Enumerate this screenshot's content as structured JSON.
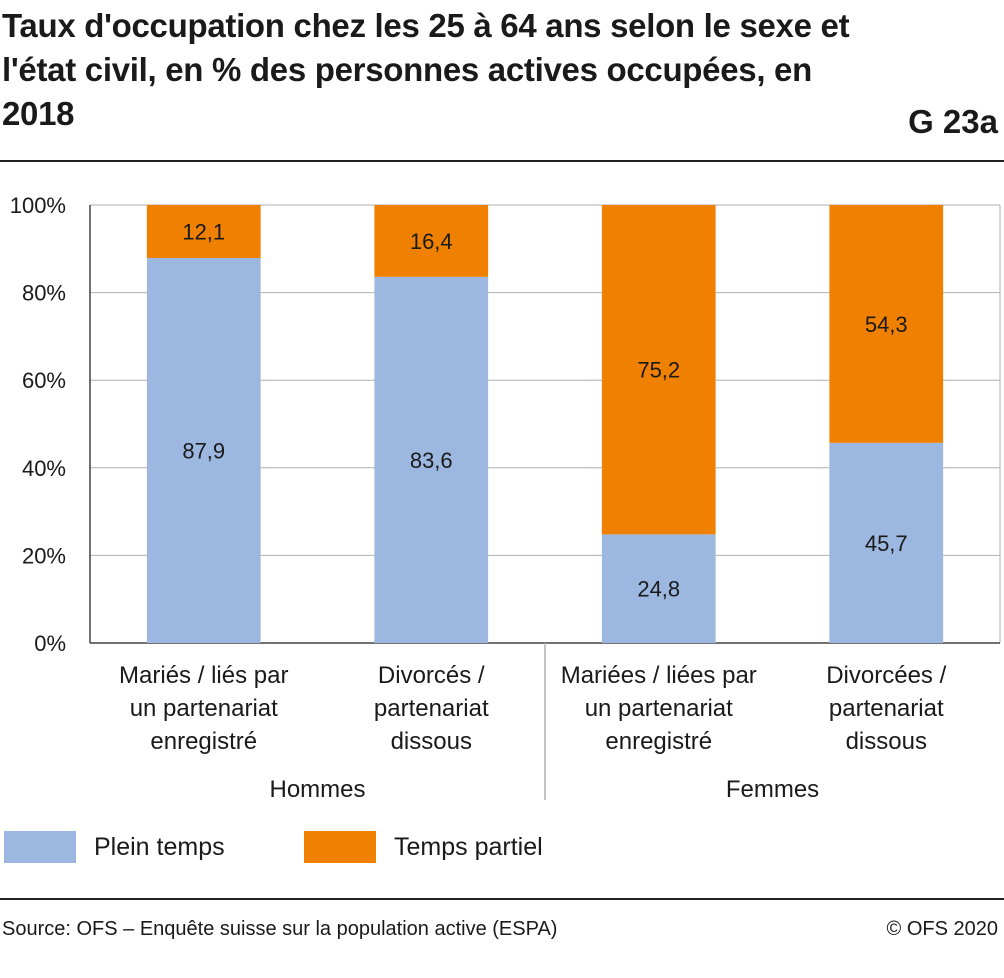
{
  "header": {
    "title": "Taux d'occupation chez les 25 à 64 ans selon le sexe et l'état civil, en % des personnes actives occupées, en 2018",
    "code": "G 23a"
  },
  "footer": {
    "source": "Source: OFS – Enquête suisse sur la population active (ESPA)",
    "copyright": "© OFS 2020"
  },
  "colors": {
    "plein_temps": "#9db8e0",
    "temps_partiel": "#f08100",
    "grid": "#b0b0b0",
    "axis": "#444444"
  },
  "chart_data": {
    "type": "bar",
    "stacked": true,
    "ylim": [
      0,
      100
    ],
    "yticks": [
      "0%",
      "20%",
      "40%",
      "60%",
      "80%",
      "100%"
    ],
    "grid": true,
    "legend_position": "bottom-left",
    "groups": [
      {
        "label": "Hommes",
        "categories": [
          [
            "Mariés / liés par",
            "un partenariat",
            "enregistré"
          ],
          [
            "Divorcés /",
            "partenariat",
            "dissous"
          ]
        ]
      },
      {
        "label": "Femmes",
        "categories": [
          [
            "Mariées / liées par",
            "un partenariat",
            "enregistré"
          ],
          [
            "Divorcées /",
            "partenariat",
            "dissous"
          ]
        ]
      }
    ],
    "series": [
      {
        "name": "Plein temps",
        "values": [
          87.9,
          83.6,
          24.8,
          45.7
        ],
        "labels": [
          "87,9",
          "83,6",
          "24,8",
          "45,7"
        ]
      },
      {
        "name": "Temps partiel",
        "values": [
          12.1,
          16.4,
          75.2,
          54.3
        ],
        "labels": [
          "12,1",
          "16,4",
          "75,2",
          "54,3"
        ]
      }
    ]
  }
}
